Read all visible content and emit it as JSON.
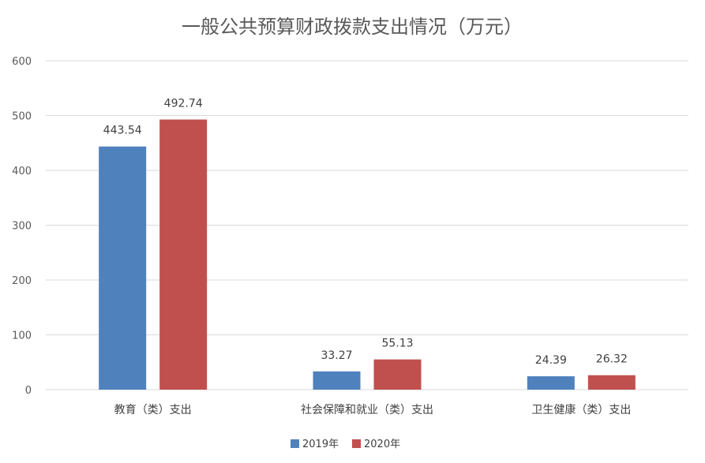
{
  "chart_data": {
    "type": "bar",
    "title": "一般公共预算财政拨款支出情况（万元）",
    "categories": [
      "教育（类）支出",
      "社会保障和就业（类）支出",
      "卫生健康（类）支出"
    ],
    "series": [
      {
        "name": "2019年",
        "values": [
          443.54,
          33.27,
          24.39
        ],
        "color": "#4f81bd"
      },
      {
        "name": "2020年",
        "values": [
          492.74,
          55.13,
          26.32
        ],
        "color": "#c0504d"
      }
    ],
    "data_labels": [
      [
        "443.54",
        "33.27",
        "24.39"
      ],
      [
        "492.74",
        "55.13",
        "26.32"
      ]
    ],
    "ylim": [
      0,
      600
    ],
    "yticks": [
      "0",
      "100",
      "200",
      "300",
      "400",
      "500",
      "600"
    ],
    "ytick_values": [
      0,
      100,
      200,
      300,
      400,
      500,
      600
    ],
    "grid": true,
    "legend": "bottom"
  }
}
